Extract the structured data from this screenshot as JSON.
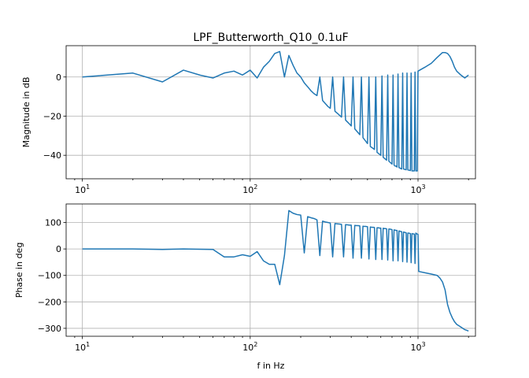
{
  "chart_data": [
    {
      "type": "line",
      "title": "LPF_Butterworth_Q10_0.1uF",
      "xlabel": "",
      "ylabel": "Magnitude in dB",
      "xscale": "log",
      "xlim": [
        8,
        2200
      ],
      "ylim": [
        -52,
        16
      ],
      "grid": true,
      "x_ticks": [
        {
          "value": 10,
          "base": "10",
          "exp": "1"
        },
        {
          "value": 100,
          "base": "10",
          "exp": "2"
        },
        {
          "value": 1000,
          "base": "10",
          "exp": "3"
        }
      ],
      "y_ticks": [
        {
          "value": 0,
          "label": "0"
        },
        {
          "value": -20,
          "label": "−20"
        },
        {
          "value": -40,
          "label": "−40"
        }
      ],
      "color": "#1f77b4",
      "series": [
        {
          "x": [
            10,
            20,
            30,
            40,
            50,
            60,
            70,
            80,
            90,
            100,
            110,
            120,
            130,
            140,
            150,
            160,
            170,
            180,
            190,
            200,
            210,
            220,
            230,
            240,
            250,
            260,
            270,
            280,
            290,
            300,
            310,
            320,
            330,
            340,
            350,
            360,
            370,
            380,
            390,
            400,
            410,
            420,
            430,
            440,
            450,
            460,
            470,
            480,
            490,
            500,
            510,
            520,
            530,
            540,
            550,
            560,
            570,
            580,
            590,
            600,
            610,
            620,
            630,
            640,
            650,
            660,
            670,
            680,
            690,
            700,
            710,
            720,
            730,
            740,
            750,
            760,
            770,
            780,
            790,
            800,
            810,
            820,
            830,
            840,
            850,
            860,
            870,
            880,
            890,
            900,
            910,
            920,
            930,
            940,
            950,
            960,
            970,
            980,
            990,
            1000,
            1100,
            1200,
            1300,
            1400,
            1450,
            1500,
            1550,
            1600,
            1650,
            1700,
            1800,
            1900,
            2000
          ],
          "y": [
            0,
            2,
            -2.5,
            3.5,
            1,
            -0.5,
            2,
            3,
            1,
            3.5,
            -0.5,
            5,
            8,
            12,
            13,
            0,
            11,
            6,
            2,
            0,
            -3,
            -5,
            -7,
            -8.5,
            -9.5,
            0,
            -12,
            -13.5,
            -15,
            -16,
            0,
            -17.5,
            -18.5,
            -19.5,
            -20.5,
            0,
            -22,
            -23,
            -24,
            -25,
            0,
            -26.5,
            -27.5,
            -28.5,
            -29.5,
            0,
            -31,
            -32,
            -33,
            -34,
            0,
            -35.5,
            -36,
            -36.5,
            -37,
            0,
            -38.5,
            -39,
            -39.5,
            -40,
            0.5,
            -41,
            -41.5,
            -42,
            -42.5,
            1,
            -43,
            -43.5,
            -44,
            -44.5,
            1,
            -45,
            -45.5,
            -45.5,
            -46,
            1.5,
            -46.3,
            -46.5,
            -46.8,
            -47,
            2,
            -47,
            -47.2,
            -47.3,
            -47.4,
            2,
            -47.5,
            -47.6,
            -47.7,
            -47.8,
            2,
            -48,
            -48,
            -48,
            -48,
            2.5,
            -48,
            -48,
            -48,
            3,
            5,
            7,
            10,
            12.5,
            12.5,
            12,
            10.5,
            8,
            5,
            3,
            1,
            -0.5,
            1
          ]
        }
      ]
    },
    {
      "type": "line",
      "title": "",
      "xlabel": "f in Hz",
      "ylabel": "Phase in deg",
      "xscale": "log",
      "xlim": [
        8,
        2200
      ],
      "ylim": [
        -330,
        170
      ],
      "grid": true,
      "x_ticks": [
        {
          "value": 10,
          "base": "10",
          "exp": "1"
        },
        {
          "value": 100,
          "base": "10",
          "exp": "2"
        },
        {
          "value": 1000,
          "base": "10",
          "exp": "3"
        }
      ],
      "y_ticks": [
        {
          "value": 100,
          "label": "100"
        },
        {
          "value": 0,
          "label": "0"
        },
        {
          "value": -100,
          "label": "−100"
        },
        {
          "value": -200,
          "label": "−200"
        },
        {
          "value": -300,
          "label": "−300"
        }
      ],
      "color": "#1f77b4",
      "series": [
        {
          "x": [
            10,
            20,
            30,
            40,
            50,
            60,
            70,
            80,
            90,
            100,
            110,
            120,
            130,
            140,
            150,
            160,
            170,
            180,
            190,
            200,
            210,
            220,
            230,
            240,
            250,
            260,
            270,
            280,
            290,
            300,
            310,
            320,
            330,
            340,
            350,
            360,
            370,
            380,
            390,
            400,
            410,
            420,
            430,
            440,
            450,
            460,
            470,
            480,
            490,
            500,
            510,
            520,
            530,
            540,
            550,
            560,
            570,
            580,
            590,
            600,
            610,
            620,
            630,
            640,
            650,
            660,
            670,
            680,
            690,
            700,
            710,
            720,
            730,
            740,
            750,
            760,
            770,
            780,
            790,
            800,
            810,
            820,
            830,
            840,
            850,
            860,
            870,
            880,
            890,
            900,
            910,
            920,
            930,
            940,
            950,
            960,
            970,
            980,
            990,
            1000,
            1010,
            1100,
            1200,
            1300,
            1350,
            1400,
            1450,
            1500,
            1550,
            1600,
            1650,
            1700,
            1800,
            1900,
            2000
          ],
          "y": [
            0,
            0,
            -2,
            0,
            -1,
            -2,
            -30,
            -30,
            -22,
            -28,
            -10,
            -45,
            -58,
            -58,
            -135,
            -25,
            145,
            135,
            130,
            128,
            -15,
            122,
            118,
            115,
            110,
            -25,
            105,
            102,
            100,
            98,
            -30,
            96,
            95,
            94,
            93,
            -30,
            92,
            91,
            90,
            90,
            -35,
            89,
            88,
            88,
            87,
            -35,
            86,
            85,
            85,
            84,
            -38,
            83,
            82,
            82,
            81,
            -40,
            80,
            80,
            79,
            79,
            -40,
            78,
            77,
            77,
            76,
            -42,
            75,
            75,
            74,
            73,
            -45,
            72,
            71,
            70,
            70,
            -45,
            68,
            67,
            66,
            65,
            -48,
            64,
            63,
            62,
            61,
            -50,
            60,
            60,
            59,
            58,
            -52,
            58,
            57,
            57,
            56,
            -55,
            60,
            58,
            56,
            55,
            -85,
            -90,
            -95,
            -100,
            -110,
            -125,
            -155,
            -210,
            -240,
            -260,
            -275,
            -285,
            -295,
            -305,
            -310
          ]
        }
      ]
    }
  ]
}
